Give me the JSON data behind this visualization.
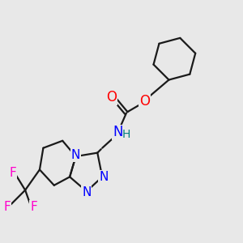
{
  "bg_color": "#e8e8e8",
  "bond_color": "#1a1a1a",
  "n_color": "#0000ff",
  "o_color": "#ff0000",
  "f_color": "#ff00cc",
  "h_color": "#008080",
  "lw": 1.6,
  "figsize": [
    3.0,
    3.0
  ],
  "dpi": 100,
  "xlim": [
    0,
    10
  ],
  "ylim": [
    0,
    10
  ]
}
